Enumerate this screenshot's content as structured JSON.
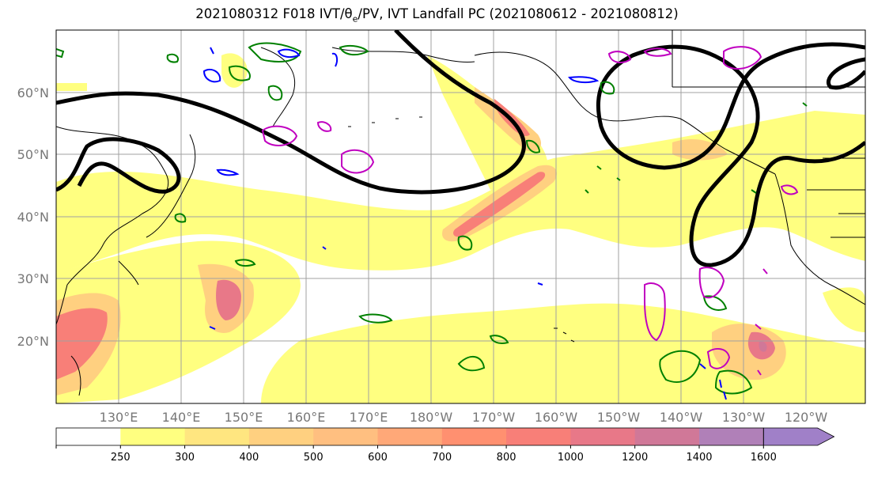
{
  "title": "2021080312 F018 IVT/θe/PV, IVT Landfall PC (2021080612 - 2021080812)",
  "title_parts": {
    "prefix": "2021080312 F018 IVT/",
    "theta": "θ",
    "sub": "e",
    "suffix": "/PV, IVT Landfall PC (2021080612 - 2021080812)"
  },
  "map": {
    "lat_labels": [
      "60°N",
      "50°N",
      "40°N",
      "30°N",
      "20°N"
    ],
    "lon_labels": [
      "130°E",
      "140°E",
      "150°E",
      "160°E",
      "170°E",
      "180°W",
      "170°W",
      "160°W",
      "150°W",
      "140°W",
      "130°W",
      "120°W"
    ],
    "colors": {
      "landfall_contour": "#000000",
      "theta_e_contour": "#c000c0",
      "pv_contour_green": "#008000",
      "pv_contour_blue": "#0000ff",
      "coastline": "#000000",
      "gridline": "#a0a0a0"
    }
  },
  "colorbar": {
    "ticks": [
      "250",
      "300",
      "400",
      "500",
      "600",
      "700",
      "800",
      "1000",
      "1200",
      "1400",
      "1600"
    ],
    "colors": [
      "#ffffff",
      "#ffff80",
      "#ffe680",
      "#ffd080",
      "#ffbf80",
      "#ffa878",
      "#ff9070",
      "#f87f78",
      "#e87888",
      "#d07898",
      "#b080b8",
      "#a080c8"
    ],
    "extend": "max"
  }
}
